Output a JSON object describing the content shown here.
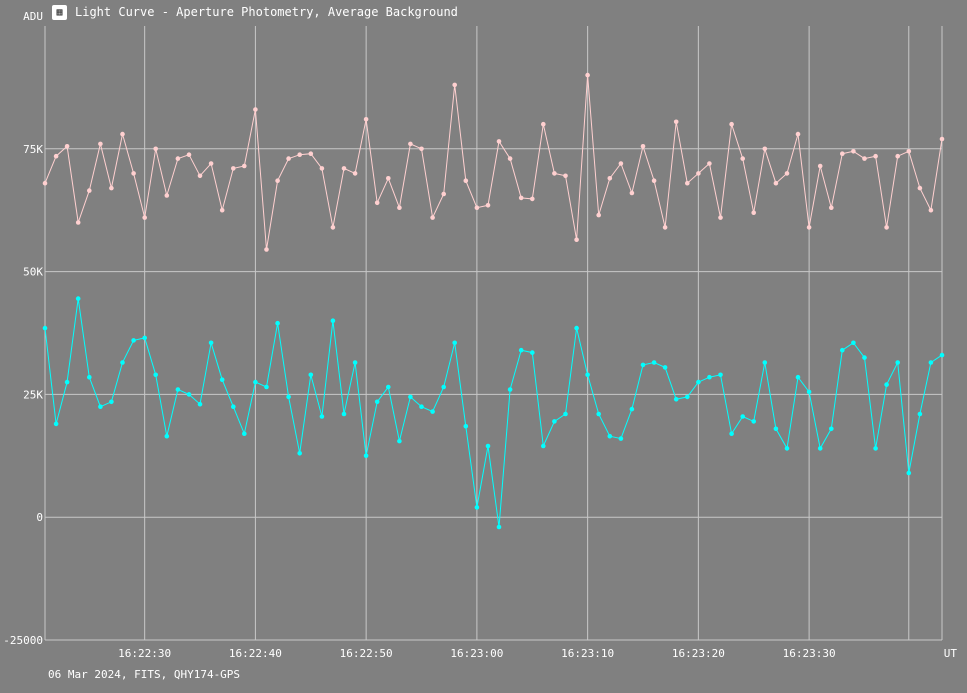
{
  "window": {
    "title": "Light Curve - Aperture Photometry, Average Background",
    "icon": "chart-icon"
  },
  "footer": "06 Mar 2024, FITS, QHY174-GPS",
  "colors": {
    "background": "#808080",
    "grid": "#c8c8c8",
    "series_top": "#ffd0d0",
    "series_bottom": "#00ffff"
  },
  "chart_data": {
    "type": "line",
    "ylabel": "ADU",
    "xlabel": "UT",
    "ylim": [
      -25000,
      100000
    ],
    "xlim": [
      "16:22:21.0",
      "16:23:42.0"
    ],
    "yticks": [
      -25000,
      0,
      25000,
      50000,
      75000
    ],
    "ytick_labels": [
      "-25000",
      "0",
      "25K",
      "50K",
      "75K"
    ],
    "xticks": [
      "16:22:30",
      "16:22:40",
      "16:22:50",
      "16:23:00",
      "16:23:10",
      "16:23:20",
      "16:23:30"
    ],
    "grid": true,
    "x_start": "16:22:21.0",
    "x_step_seconds": 1.0,
    "series": [
      {
        "values": [
          68000,
          73500,
          75500,
          60000,
          66500,
          76000,
          67000,
          78000,
          70000,
          61000,
          75000,
          65500,
          73000,
          73800,
          69500,
          72000,
          62500,
          71000,
          71500,
          83000,
          54500,
          68500,
          73000,
          73800,
          74000,
          71000,
          59000,
          71000,
          70000,
          81000,
          64000,
          69000,
          63000,
          76000,
          75000,
          61000,
          65800,
          88000,
          68500,
          63000,
          63500,
          76500,
          73000,
          65000,
          64800,
          80000,
          70000,
          69500,
          56500,
          90000,
          61500,
          69000,
          72000,
          66000,
          75500,
          68500,
          59000,
          80500,
          68000,
          70000,
          72000,
          61000,
          80000,
          73000,
          62000,
          75000,
          68000,
          70000,
          78000,
          59000,
          71500,
          63000,
          74000,
          74500,
          73000,
          73500,
          59000,
          73500,
          74500,
          67000,
          62500,
          77000
        ]
      },
      {
        "values": [
          38500,
          19000,
          27500,
          44500,
          28500,
          22500,
          23500,
          31500,
          36000,
          36500,
          29000,
          16500,
          26000,
          25000,
          23000,
          35500,
          28000,
          22500,
          17000,
          27500,
          26500,
          39500,
          24500,
          13000,
          29000,
          20500,
          40000,
          21000,
          31500,
          12500,
          23500,
          26500,
          15500,
          24500,
          22500,
          21500,
          26500,
          35500,
          18500,
          2000,
          14500,
          -2000,
          26000,
          34000,
          33500,
          14500,
          19500,
          21000,
          38500,
          29000,
          21000,
          16500,
          16000,
          22000,
          31000,
          31500,
          30500,
          24000,
          24500,
          27500,
          28500,
          29000,
          17000,
          20500,
          19500,
          31500,
          18000,
          14000,
          28500,
          25500,
          14000,
          18000,
          34000,
          35500,
          32500,
          14000,
          27000,
          31500,
          9000,
          21000,
          31500,
          33000
        ]
      }
    ]
  }
}
